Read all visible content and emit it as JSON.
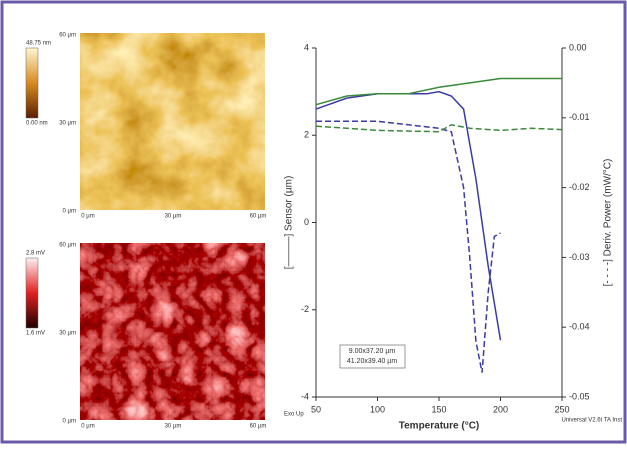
{
  "afm_images": [
    {
      "colorbar_max": "48.75 nm",
      "colorbar_min": "0.00 nm",
      "y_labels": [
        "60 µm",
        "30 µm",
        "0 µm"
      ],
      "x_labels": [
        "0 µm",
        "30 µm",
        "60 µm"
      ]
    },
    {
      "colorbar_max": "2.8 mV",
      "colorbar_min": "1.6 mV",
      "y_labels": [
        "60 µm",
        "30 µm",
        "0 µm"
      ],
      "x_labels": [
        "0 µm",
        "30 µm",
        "60 µm"
      ]
    }
  ],
  "chart_data": {
    "type": "line",
    "x_label": "Temperature (°C)",
    "y_label": "[———] Sensor (µm)",
    "y2_label": "[- - - -] Deriv. Power (mW/°C)",
    "annotations": [
      "Exo Up",
      "Universal V2.6t TA Inst"
    ],
    "xlim": [
      50,
      250
    ],
    "xticks": [
      50,
      100,
      150,
      200,
      250
    ],
    "ylim": [
      -4,
      4
    ],
    "yticks": [
      4,
      2,
      0,
      -2,
      -4
    ],
    "y2lim": [
      -0.05,
      0
    ],
    "y2ticks": [
      {
        "value": 0,
        "label": "0.00"
      },
      -0.01,
      -0.02,
      -0.03,
      -0.04,
      -0.05
    ],
    "series": [
      {
        "name": "9.00x37.20 µm",
        "color": "#3a3aa8",
        "style": "solid",
        "axis": "y",
        "x": [
          50,
          75,
          100,
          125,
          140,
          150,
          160,
          170,
          180,
          190,
          200
        ],
        "values": [
          2.6,
          2.85,
          2.95,
          2.95,
          2.95,
          3.0,
          2.9,
          2.6,
          1.0,
          -1.0,
          -2.7
        ]
      },
      {
        "name": "41.20x39.40 µm",
        "color": "#3a8a3a",
        "style": "solid",
        "axis": "y",
        "x": [
          50,
          75,
          100,
          125,
          150,
          175,
          200,
          225,
          250
        ],
        "values": [
          2.7,
          2.9,
          2.95,
          2.95,
          3.1,
          3.2,
          3.3,
          3.3,
          3.3
        ]
      },
      {
        "color": "#3a3aa8",
        "style": "dashed",
        "axis": "y2",
        "x": [
          50,
          100,
          125,
          150,
          160,
          170,
          175,
          180,
          185,
          190,
          195,
          200
        ],
        "values": [
          -0.0105,
          -0.0105,
          -0.011,
          -0.0115,
          -0.012,
          -0.02,
          -0.03,
          -0.042,
          -0.0465,
          -0.035,
          -0.027,
          -0.0265
        ]
      },
      {
        "color": "#3a8a3a",
        "style": "dashed",
        "axis": "y2",
        "x": [
          50,
          100,
          150,
          160,
          175,
          200,
          225,
          250
        ],
        "values": [
          -0.0112,
          -0.0118,
          -0.012,
          -0.011,
          -0.0115,
          -0.0118,
          -0.0115,
          -0.0117
        ]
      }
    ]
  }
}
